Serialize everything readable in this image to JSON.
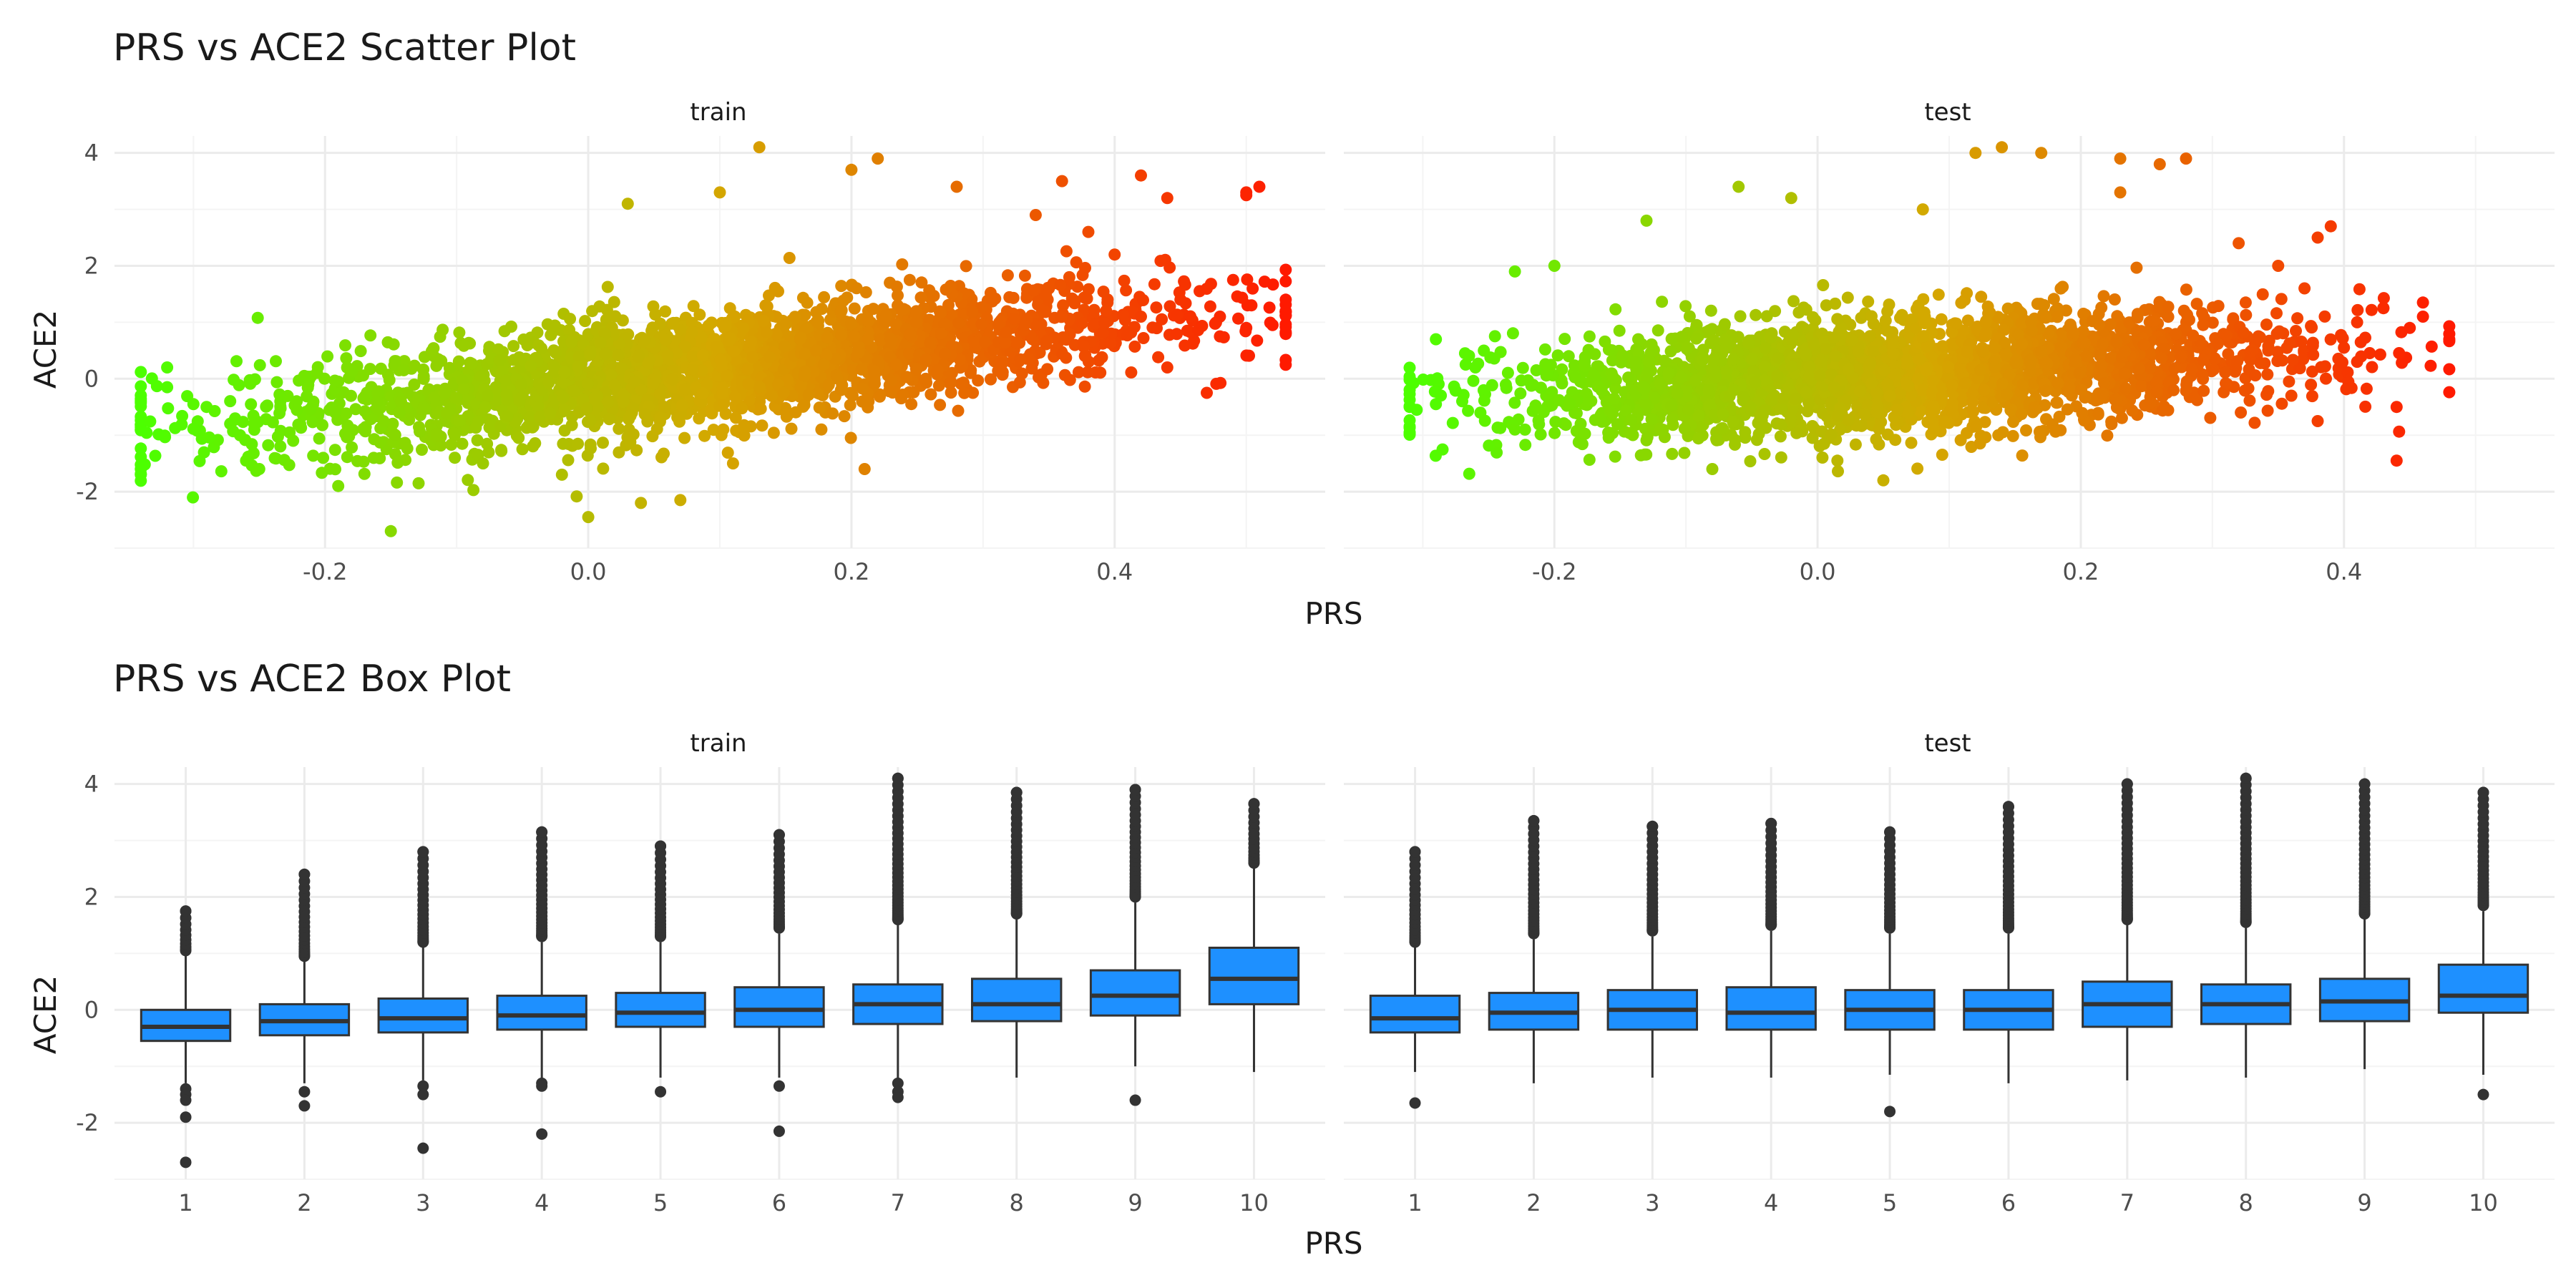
{
  "chart_data": [
    {
      "type": "scatter",
      "title": "PRS vs ACE2 Scatter Plot",
      "xlabel": "PRS",
      "ylabel": "ACE2",
      "color_scale": {
        "low": "#4cff00",
        "mid": "#d4a800",
        "high": "#ff1a00"
      },
      "grid": true,
      "panels": [
        {
          "label": "train",
          "xlim": [
            -0.36,
            0.56
          ],
          "ylim": [
            -3.0,
            4.3
          ],
          "xticks": [
            "-0.2",
            "0.0",
            "0.2",
            "0.4"
          ],
          "xtick_values": [
            -0.2,
            0.0,
            0.2,
            0.4
          ],
          "yticks": [
            "-2",
            "0",
            "2",
            "4"
          ],
          "ytick_values": [
            -2,
            0,
            2,
            4
          ],
          "trend": {
            "intercept": -0.05,
            "slope": 2.6
          },
          "x_range": [
            -0.34,
            0.53
          ],
          "cloud_x_range": [
            -0.22,
            0.4
          ],
          "points": [
            [
              -0.34,
              -0.9
            ],
            [
              -0.32,
              0.2
            ],
            [
              -0.32,
              -0.15
            ],
            [
              -0.3,
              -0.45
            ],
            [
              -0.29,
              -0.5
            ],
            [
              -0.26,
              -1.45
            ],
            [
              -0.25,
              -1.6
            ],
            [
              -0.19,
              -1.9
            ],
            [
              -0.15,
              -2.7
            ],
            [
              -0.08,
              -1.5
            ],
            [
              -0.02,
              -1.7
            ],
            [
              0.0,
              -2.45
            ],
            [
              0.04,
              -2.2
            ],
            [
              0.07,
              -2.15
            ],
            [
              0.11,
              -1.5
            ],
            [
              0.21,
              -1.6
            ],
            [
              0.13,
              4.1
            ],
            [
              0.2,
              3.7
            ],
            [
              0.22,
              3.9
            ],
            [
              0.1,
              3.3
            ],
            [
              0.03,
              3.1
            ],
            [
              0.28,
              3.4
            ],
            [
              0.36,
              3.5
            ],
            [
              0.42,
              3.6
            ],
            [
              0.44,
              3.2
            ],
            [
              0.5,
              3.3
            ],
            [
              0.51,
              3.4
            ],
            [
              0.5,
              3.25
            ],
            [
              0.53,
              1.4
            ],
            [
              0.52,
              0.95
            ],
            [
              0.5,
              0.9
            ],
            [
              0.49,
              1.75
            ],
            [
              0.48,
              0.75
            ],
            [
              0.47,
              -0.25
            ],
            [
              0.45,
              1.4
            ],
            [
              0.44,
              0.2
            ],
            [
              0.42,
              1.1
            ],
            [
              0.4,
              2.2
            ],
            [
              0.38,
              2.6
            ],
            [
              0.34,
              2.9
            ]
          ]
        },
        {
          "label": "test",
          "xlim": [
            -0.36,
            0.56
          ],
          "ylim": [
            -3.0,
            4.3
          ],
          "xticks": [
            "-0.2",
            "0.0",
            "0.2",
            "0.4"
          ],
          "xtick_values": [
            -0.2,
            0.0,
            0.2,
            0.4
          ],
          "yticks": [
            "-2",
            "0",
            "2",
            "4"
          ],
          "ytick_values": [
            -2,
            0,
            2,
            4
          ],
          "trend": {
            "intercept": 0.0,
            "slope": 1.3
          },
          "x_range": [
            -0.31,
            0.48
          ],
          "cloud_x_range": [
            -0.2,
            0.33
          ],
          "points": [
            [
              -0.31,
              -0.5
            ],
            [
              -0.29,
              -0.45
            ],
            [
              -0.29,
              0.7
            ],
            [
              -0.27,
              -0.4
            ],
            [
              -0.26,
              0.2
            ],
            [
              -0.23,
              1.9
            ],
            [
              -0.23,
              -0.9
            ],
            [
              -0.2,
              2.0
            ],
            [
              -0.18,
              -0.8
            ],
            [
              -0.13,
              2.8
            ],
            [
              -0.08,
              -1.6
            ],
            [
              -0.06,
              3.4
            ],
            [
              -0.02,
              3.2
            ],
            [
              0.05,
              -1.8
            ],
            [
              0.08,
              3.0
            ],
            [
              0.12,
              4.0
            ],
            [
              0.14,
              4.1
            ],
            [
              0.17,
              4.0
            ],
            [
              0.23,
              3.9
            ],
            [
              0.23,
              3.3
            ],
            [
              0.26,
              3.8
            ],
            [
              0.28,
              3.9
            ],
            [
              0.32,
              2.4
            ],
            [
              0.38,
              2.5
            ],
            [
              0.39,
              2.7
            ],
            [
              0.33,
              0.5
            ],
            [
              0.36,
              -0.3
            ],
            [
              0.38,
              -0.75
            ],
            [
              0.4,
              0.55
            ],
            [
              0.44,
              -0.5
            ],
            [
              0.44,
              -1.45
            ],
            [
              0.45,
              0.9
            ],
            [
              0.46,
              1.1
            ],
            [
              0.46,
              1.35
            ],
            [
              0.48,
              0.7
            ],
            [
              0.41,
              1.0
            ],
            [
              0.43,
              1.25
            ],
            [
              0.37,
              1.6
            ],
            [
              0.35,
              2.0
            ],
            [
              0.41,
              0.3
            ]
          ]
        }
      ]
    },
    {
      "type": "box",
      "title": "PRS vs ACE2 Box Plot",
      "xlabel": "PRS",
      "ylabel": "ACE2",
      "box_color": "#1e90ff",
      "ylim": [
        -3.0,
        4.3
      ],
      "yticks": [
        "-2",
        "0",
        "2",
        "4"
      ],
      "ytick_values": [
        -2,
        0,
        2,
        4
      ],
      "grid": true,
      "panels": [
        {
          "label": "train",
          "categories": [
            "1",
            "2",
            "3",
            "4",
            "5",
            "6",
            "7",
            "8",
            "9",
            "10"
          ],
          "boxes": [
            {
              "min": -1.3,
              "q1": -0.55,
              "median": -0.3,
              "q3": 0.0,
              "max": 1.0,
              "outliers_low": [
                -1.4,
                -1.5,
                -1.6,
                -1.9,
                -2.7
              ],
              "outliers_high_from": 1.05,
              "outliers_high_to": 1.75
            },
            {
              "min": -1.3,
              "q1": -0.45,
              "median": -0.2,
              "q3": 0.1,
              "max": 0.9,
              "outliers_low": [
                -1.45,
                -1.7
              ],
              "outliers_high_from": 0.95,
              "outliers_high_to": 2.4
            },
            {
              "min": -1.25,
              "q1": -0.4,
              "median": -0.15,
              "q3": 0.2,
              "max": 1.1,
              "outliers_low": [
                -1.35,
                -1.5,
                -2.45
              ],
              "outliers_high_from": 1.2,
              "outliers_high_to": 2.8
            },
            {
              "min": -1.2,
              "q1": -0.35,
              "median": -0.1,
              "q3": 0.25,
              "max": 1.2,
              "outliers_low": [
                -1.3,
                -1.35,
                -2.2
              ],
              "outliers_high_from": 1.3,
              "outliers_high_to": 3.15
            },
            {
              "min": -1.2,
              "q1": -0.3,
              "median": -0.05,
              "q3": 0.3,
              "max": 1.2,
              "outliers_low": [
                -1.45
              ],
              "outliers_high_from": 1.3,
              "outliers_high_to": 2.9
            },
            {
              "min": -1.2,
              "q1": -0.3,
              "median": 0.0,
              "q3": 0.4,
              "max": 1.35,
              "outliers_low": [
                -1.35,
                -2.15
              ],
              "outliers_high_from": 1.45,
              "outliers_high_to": 3.1
            },
            {
              "min": -1.2,
              "q1": -0.25,
              "median": 0.1,
              "q3": 0.45,
              "max": 1.5,
              "outliers_low": [
                -1.3,
                -1.45,
                -1.55
              ],
              "outliers_high_from": 1.6,
              "outliers_high_to": 4.1
            },
            {
              "min": -1.2,
              "q1": -0.2,
              "median": 0.1,
              "q3": 0.55,
              "max": 1.6,
              "outliers_low": [],
              "outliers_high_from": 1.7,
              "outliers_high_to": 3.85
            },
            {
              "min": -1.0,
              "q1": -0.1,
              "median": 0.25,
              "q3": 0.7,
              "max": 1.9,
              "outliers_low": [
                -1.6
              ],
              "outliers_high_from": 2.0,
              "outliers_high_to": 3.9
            },
            {
              "min": -1.1,
              "q1": 0.1,
              "median": 0.55,
              "q3": 1.1,
              "max": 2.5,
              "outliers_low": [],
              "outliers_high_from": 2.6,
              "outliers_high_to": 3.65
            }
          ]
        },
        {
          "label": "test",
          "categories": [
            "1",
            "2",
            "3",
            "4",
            "5",
            "6",
            "7",
            "8",
            "9",
            "10"
          ],
          "boxes": [
            {
              "min": -1.1,
              "q1": -0.4,
              "median": -0.15,
              "q3": 0.25,
              "max": 1.1,
              "outliers_low": [
                -1.65
              ],
              "outliers_high_from": 1.2,
              "outliers_high_to": 2.8
            },
            {
              "min": -1.3,
              "q1": -0.35,
              "median": -0.05,
              "q3": 0.3,
              "max": 1.25,
              "outliers_low": [],
              "outliers_high_from": 1.35,
              "outliers_high_to": 3.35
            },
            {
              "min": -1.2,
              "q1": -0.35,
              "median": 0.0,
              "q3": 0.35,
              "max": 1.3,
              "outliers_low": [],
              "outliers_high_from": 1.4,
              "outliers_high_to": 3.25
            },
            {
              "min": -1.2,
              "q1": -0.35,
              "median": -0.05,
              "q3": 0.4,
              "max": 1.4,
              "outliers_low": [],
              "outliers_high_from": 1.5,
              "outliers_high_to": 3.3
            },
            {
              "min": -1.15,
              "q1": -0.35,
              "median": 0.0,
              "q3": 0.35,
              "max": 1.35,
              "outliers_low": [
                -1.8
              ],
              "outliers_high_from": 1.45,
              "outliers_high_to": 3.15
            },
            {
              "min": -1.3,
              "q1": -0.35,
              "median": 0.0,
              "q3": 0.35,
              "max": 1.35,
              "outliers_low": [],
              "outliers_high_from": 1.45,
              "outliers_high_to": 3.6
            },
            {
              "min": -1.25,
              "q1": -0.3,
              "median": 0.1,
              "q3": 0.5,
              "max": 1.5,
              "outliers_low": [],
              "outliers_high_from": 1.6,
              "outliers_high_to": 4.0
            },
            {
              "min": -1.2,
              "q1": -0.25,
              "median": 0.1,
              "q3": 0.45,
              "max": 1.45,
              "outliers_low": [],
              "outliers_high_from": 1.55,
              "outliers_high_to": 4.1
            },
            {
              "min": -1.05,
              "q1": -0.2,
              "median": 0.15,
              "q3": 0.55,
              "max": 1.6,
              "outliers_low": [],
              "outliers_high_from": 1.7,
              "outliers_high_to": 4.0
            },
            {
              "min": -1.15,
              "q1": -0.05,
              "median": 0.25,
              "q3": 0.8,
              "max": 1.75,
              "outliers_low": [
                -1.5
              ],
              "outliers_high_from": 1.85,
              "outliers_high_to": 3.85
            }
          ]
        }
      ]
    }
  ]
}
